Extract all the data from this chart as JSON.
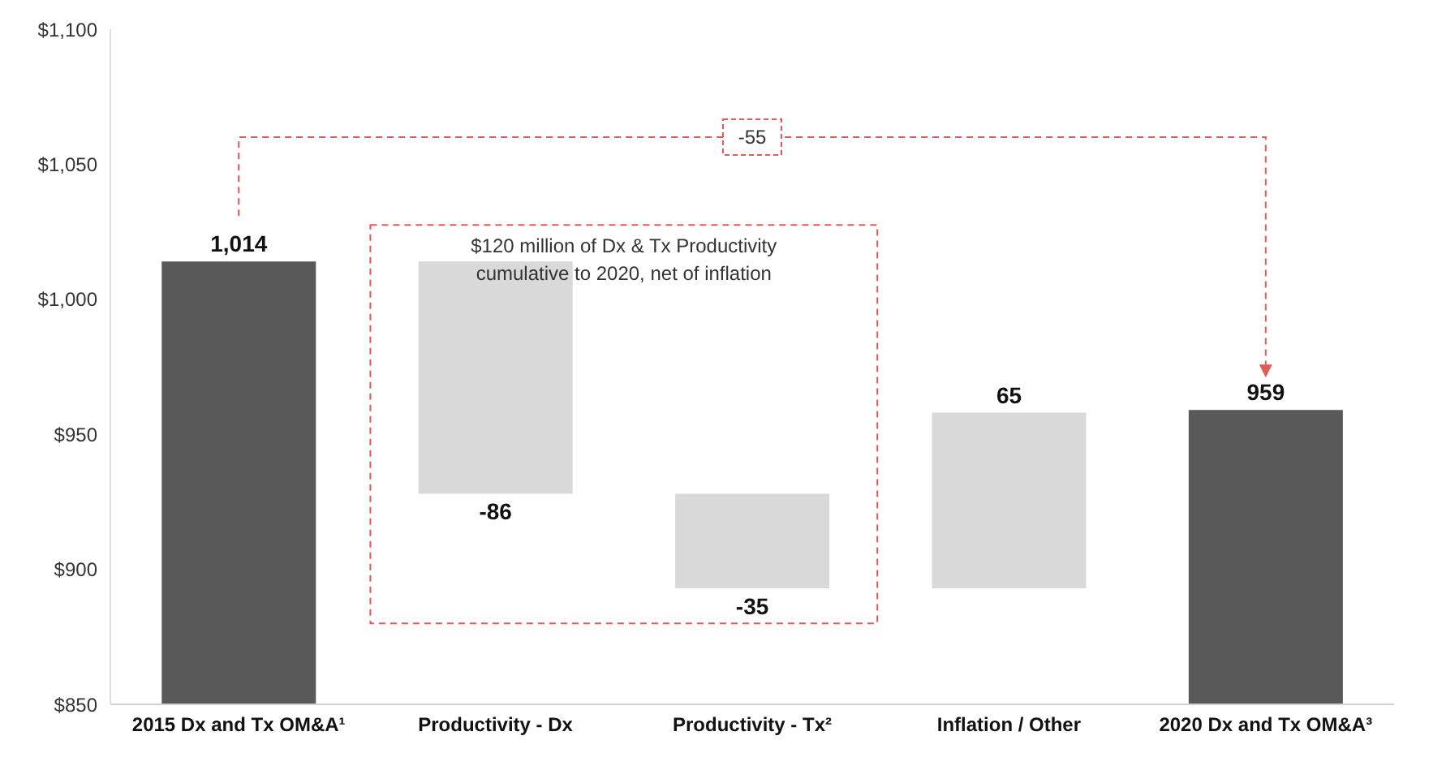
{
  "chart_data": {
    "type": "bar",
    "categories": [
      "2015 Dx and Tx OM&A¹",
      "Productivity - Dx",
      "Productivity - Tx²",
      "Inflation / Other",
      "2020 Dx and Tx OM&A³"
    ],
    "values": [
      1014,
      -86,
      -35,
      65,
      959
    ],
    "base": [
      null,
      1014,
      928,
      893,
      null
    ],
    "colors": [
      "#595959",
      "#d9d9d9",
      "#d9d9d9",
      "#d9d9d9",
      "#595959"
    ],
    "value_labels": [
      "1,014",
      "-86",
      "-35",
      "65",
      "959"
    ],
    "ylim": [
      850,
      1100
    ],
    "yticks": [
      {
        "value": 850,
        "label": "$850"
      },
      {
        "value": 900,
        "label": "$900"
      },
      {
        "value": 950,
        "label": "$950"
      },
      {
        "value": 1000,
        "label": "$1,000"
      },
      {
        "value": 1050,
        "label": "$1,050"
      },
      {
        "value": 1100,
        "label": "$1,100"
      }
    ],
    "annotations": [
      "-55",
      "$120 million of Dx & Tx Productivity\ncumulative to 2020, net of inflation"
    ]
  }
}
